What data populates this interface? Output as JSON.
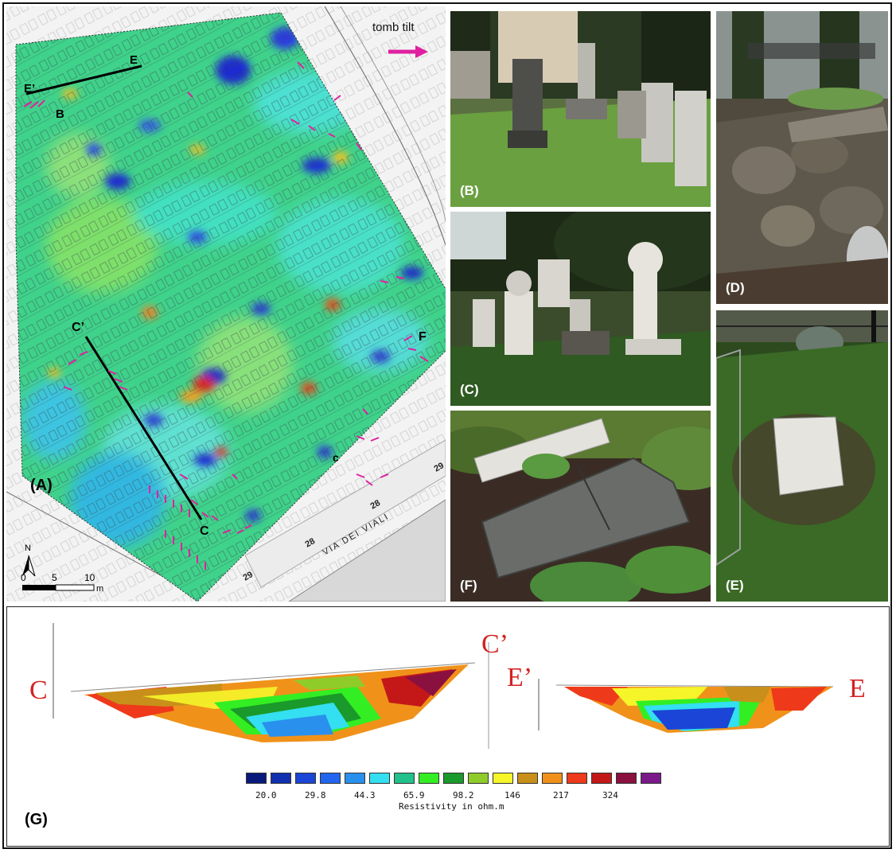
{
  "map": {
    "panel_label": "(A)",
    "legend_arrow_label": "tomb tilt",
    "north_label": "N",
    "scale_labels": [
      "0",
      "5",
      "10"
    ],
    "scale_unit": "m",
    "point_labels": {
      "E": "E",
      "E_prime": "E’",
      "B": "B",
      "C_prime": "C’",
      "C": "C",
      "F": "F",
      "c_small": "c"
    },
    "street_text": "VIA DEI VIALI",
    "plot_numbers": [
      "29",
      "28",
      "28",
      "29"
    ]
  },
  "photos": [
    {
      "id": "B",
      "label": "(B)"
    },
    {
      "id": "C",
      "label": "(C)"
    },
    {
      "id": "D",
      "label": "(D)"
    },
    {
      "id": "E",
      "label": "(E)"
    },
    {
      "id": "F",
      "label": "(F)"
    }
  ],
  "profiles": {
    "panel_label": "(G)",
    "left": {
      "start": "C",
      "end": "C’"
    },
    "right": {
      "start": "E’",
      "end": "E"
    },
    "colorbar": {
      "colors": [
        "#0a1a7a",
        "#1030b0",
        "#1a45d6",
        "#2266ee",
        "#2a90ee",
        "#33dff0",
        "#22c08a",
        "#33ee22",
        "#1a9a2a",
        "#8fcc2a",
        "#f5f52a",
        "#c8901a",
        "#f0901a",
        "#ee3a1a",
        "#c41818",
        "#8a1040",
        "#7a1a8a"
      ],
      "tick_labels": [
        "20.0",
        "29.8",
        "44.3",
        "65.9",
        "98.2",
        "146",
        "217",
        "324"
      ],
      "title": "Resistivity in ohm.m"
    }
  }
}
